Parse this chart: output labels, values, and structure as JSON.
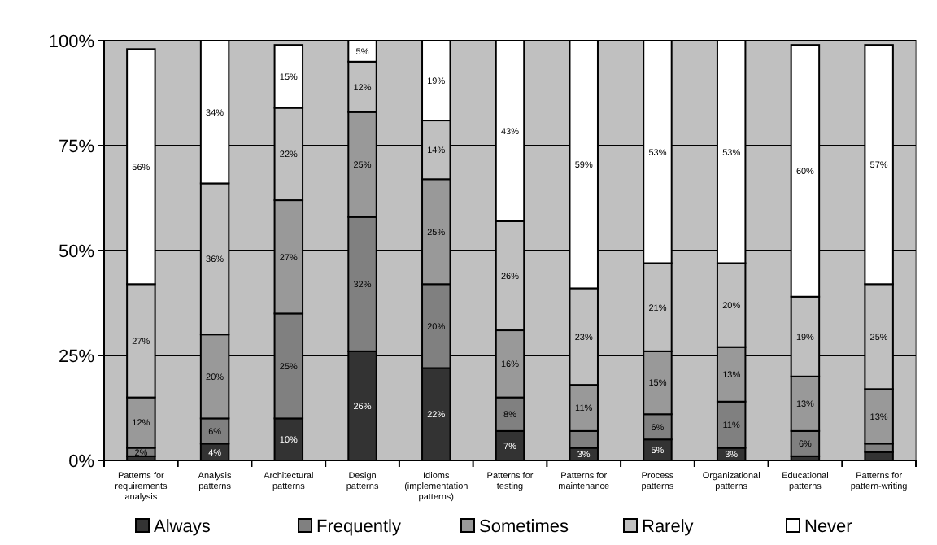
{
  "chart_data": {
    "type": "bar",
    "stacked": true,
    "categories": [
      "Patterns for requirements analysis",
      "Analysis patterns",
      "Architectural patterns",
      "Design patterns",
      "Idioms (implementation patterns)",
      "Patterns for testing",
      "Patterns for maintenance",
      "Process patterns",
      "Organizational patterns",
      "Educational patterns",
      "Patterns for pattern-writing"
    ],
    "series": [
      {
        "name": "Always",
        "color": "#333333",
        "values": [
          1,
          4,
          10,
          26,
          22,
          7,
          3,
          5,
          3,
          1,
          2
        ],
        "value_labels": [
          null,
          "4%",
          "10%",
          "26%",
          "22%",
          "7%",
          "3%",
          "5%",
          "3%",
          null,
          null
        ]
      },
      {
        "name": "Frequently",
        "color": "#808080",
        "values": [
          2,
          6,
          25,
          32,
          20,
          8,
          4,
          6,
          11,
          6,
          2
        ],
        "value_labels": [
          "2%",
          "6%",
          "25%",
          "32%",
          "20%",
          "8%",
          null,
          "6%",
          "11%",
          "6%",
          null
        ]
      },
      {
        "name": "Sometimes",
        "color": "#999999",
        "values": [
          12,
          20,
          27,
          25,
          25,
          16,
          11,
          15,
          13,
          13,
          13
        ],
        "value_labels": [
          "12%",
          "20%",
          "27%",
          "25%",
          "25%",
          "16%",
          "11%",
          "15%",
          "13%",
          "13%",
          "13%"
        ]
      },
      {
        "name": "Rarely",
        "color": "#c0c0c0",
        "values": [
          27,
          36,
          22,
          12,
          14,
          26,
          23,
          21,
          20,
          19,
          25
        ],
        "value_labels": [
          "27%",
          "36%",
          "22%",
          "12%",
          "14%",
          "26%",
          "23%",
          "21%",
          "20%",
          "19%",
          "25%"
        ]
      },
      {
        "name": "Never",
        "color": "#ffffff",
        "values": [
          56,
          34,
          15,
          5,
          19,
          43,
          59,
          53,
          53,
          60,
          57
        ],
        "value_labels": [
          "56%",
          "34%",
          "15%",
          "5%",
          "19%",
          "43%",
          "59%",
          "53%",
          "53%",
          "60%",
          "57%"
        ]
      }
    ],
    "ylim": [
      0,
      100
    ],
    "yticks": [
      {
        "value": 0,
        "label": "0%"
      },
      {
        "value": 25,
        "label": "25%"
      },
      {
        "value": 50,
        "label": "50%"
      },
      {
        "value": 75,
        "label": "75%"
      },
      {
        "value": 100,
        "label": "100%"
      }
    ],
    "grid": "y",
    "legend": "bottom"
  }
}
